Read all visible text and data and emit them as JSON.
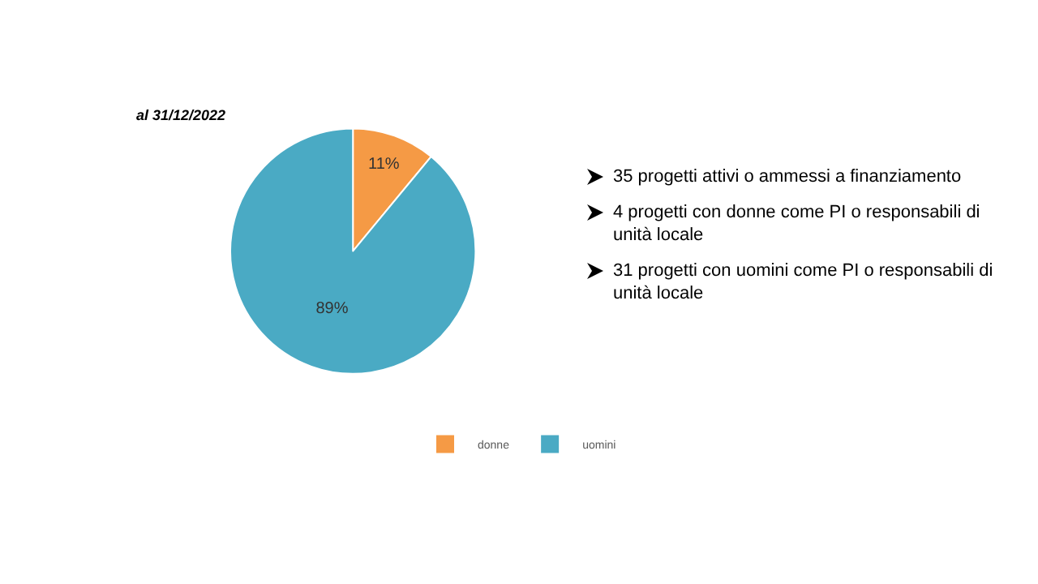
{
  "chart_data": {
    "type": "pie",
    "subtitle": "al 31/12/2022",
    "categories": [
      "donne",
      "uomini"
    ],
    "values": [
      11,
      89
    ],
    "colors": [
      "#f59a45",
      "#4aaac4"
    ],
    "value_labels": [
      "11%",
      "89%"
    ],
    "legend": "bottom",
    "annotations": [
      "35 progetti attivi o ammessi a finanziamento",
      "4 progetti con donne come PI o responsabili di unità locale",
      "31 progetti con uomini come PI o responsabili di unità locale"
    ]
  }
}
